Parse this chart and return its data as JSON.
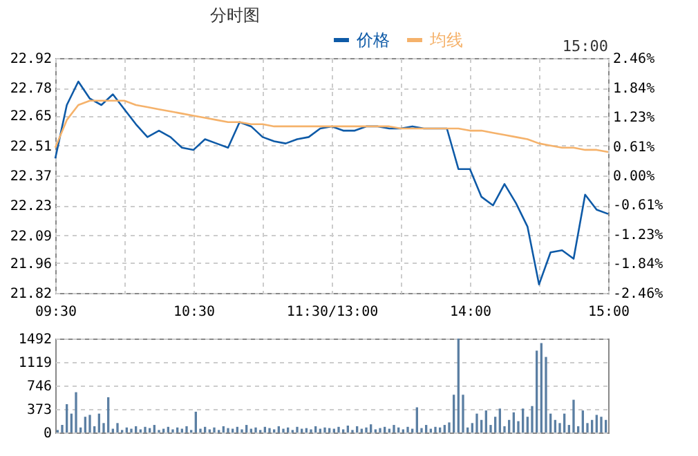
{
  "chart_data": [
    {
      "type": "line",
      "title": "分时图",
      "legend": "top",
      "grid": true,
      "annotations": [
        "15:00"
      ],
      "categories": [
        "09:30",
        null,
        null,
        null,
        null,
        null,
        null,
        null,
        null,
        null,
        null,
        null,
        "10:30",
        null,
        null,
        null,
        null,
        null,
        null,
        null,
        null,
        null,
        null,
        null,
        "11:30/13:00",
        null,
        null,
        null,
        null,
        null,
        null,
        null,
        null,
        null,
        null,
        null,
        "14:00",
        null,
        null,
        null,
        null,
        null,
        null,
        null,
        null,
        null,
        null,
        null,
        "15:00"
      ],
      "ylim": [
        21.82,
        22.92
      ],
      "yticks": [
        21.82,
        21.96,
        22.09,
        22.23,
        22.37,
        22.51,
        22.65,
        22.78,
        22.92
      ],
      "y2lim": [
        -2.46,
        2.46
      ],
      "y2ticks": [
        {
          "value": -2.46,
          "label": "-2.46%"
        },
        {
          "value": -1.84,
          "label": "-1.84%"
        },
        {
          "value": -1.23,
          "label": "-1.23%"
        },
        {
          "value": -0.61,
          "label": "-0.61%"
        },
        {
          "value": 0,
          "label": "0.00%"
        },
        {
          "value": 0.61,
          "label": "0.61%"
        },
        {
          "value": 1.23,
          "label": "1.23%"
        },
        {
          "value": 1.84,
          "label": "1.84%"
        },
        {
          "value": 2.46,
          "label": "2.46%"
        }
      ],
      "series": [
        {
          "name": "价格",
          "color": "#0e5aa7",
          "values": [
            22.45,
            22.7,
            22.81,
            22.73,
            22.7,
            22.75,
            22.68,
            22.61,
            22.55,
            22.58,
            22.55,
            22.5,
            22.49,
            22.54,
            22.52,
            22.5,
            22.62,
            22.6,
            22.55,
            22.53,
            22.52,
            22.54,
            22.55,
            22.59,
            22.6,
            22.58,
            22.58,
            22.6,
            22.6,
            22.59,
            22.59,
            22.6,
            22.59,
            22.59,
            22.59,
            22.4,
            22.4,
            22.27,
            22.23,
            22.33,
            22.24,
            22.13,
            21.86,
            22.01,
            22.02,
            21.98,
            22.28,
            22.21,
            22.19
          ]
        },
        {
          "name": "均线",
          "color": "#f5b26b",
          "values": [
            22.5,
            22.63,
            22.7,
            22.72,
            22.72,
            22.72,
            22.72,
            22.7,
            22.69,
            22.68,
            22.67,
            22.66,
            22.65,
            22.64,
            22.63,
            22.62,
            22.62,
            22.61,
            22.61,
            22.6,
            22.6,
            22.6,
            22.6,
            22.6,
            22.6,
            22.6,
            22.6,
            22.6,
            22.6,
            22.6,
            22.59,
            22.59,
            22.59,
            22.59,
            22.59,
            22.59,
            22.58,
            22.58,
            22.57,
            22.56,
            22.55,
            22.54,
            22.52,
            22.51,
            22.5,
            22.5,
            22.49,
            22.49,
            22.48
          ]
        }
      ]
    },
    {
      "type": "bar",
      "grid": "y",
      "tick_labels": "y",
      "color": "#5b7fa3",
      "categories": [
        null,
        null,
        null,
        null,
        null,
        null,
        null,
        null,
        null,
        null,
        null,
        null,
        null,
        null,
        null,
        null,
        null,
        null,
        null,
        null,
        null,
        null,
        null,
        null,
        null,
        null,
        null,
        null,
        null,
        null,
        null,
        null,
        null,
        null,
        null,
        null,
        null,
        null,
        null,
        null,
        null,
        null,
        null,
        null,
        null,
        null,
        null,
        null,
        null,
        null,
        null,
        null,
        null,
        null,
        null,
        null,
        null,
        null,
        null,
        null,
        null,
        null,
        null,
        null,
        null,
        null,
        null,
        null,
        null,
        null,
        null,
        null,
        null,
        null,
        null,
        null,
        null,
        null,
        null,
        null,
        null,
        null,
        null,
        null,
        null,
        null,
        null,
        null,
        null,
        null,
        null,
        null,
        null,
        null,
        null,
        null,
        null,
        null,
        null,
        null,
        null,
        null,
        null,
        null,
        null,
        null,
        null,
        null,
        null,
        null,
        null,
        null,
        null,
        null,
        null,
        null,
        null,
        null,
        null,
        null
      ],
      "ylim": [
        0,
        1492
      ],
      "yticks": [
        0,
        373,
        746,
        1119,
        1492
      ],
      "values": [
        40,
        120,
        450,
        300,
        640,
        80,
        250,
        280,
        100,
        300,
        150,
        560,
        60,
        150,
        40,
        80,
        60,
        100,
        50,
        90,
        70,
        120,
        40,
        60,
        90,
        50,
        80,
        60,
        100,
        40,
        330,
        60,
        90,
        50,
        80,
        40,
        100,
        70,
        60,
        90,
        50,
        120,
        60,
        80,
        40,
        90,
        70,
        50,
        100,
        60,
        80,
        40,
        90,
        60,
        70,
        50,
        100,
        60,
        80,
        70,
        60,
        90,
        50,
        110,
        40,
        100,
        60,
        80,
        130,
        50,
        70,
        90,
        60,
        120,
        80,
        50,
        90,
        60,
        400,
        70,
        120,
        60,
        90,
        80,
        120,
        160,
        600,
        1492,
        600,
        80,
        150,
        300,
        200,
        350,
        120,
        250,
        380,
        100,
        200,
        320,
        180,
        380,
        250,
        420,
        1300,
        1420,
        1200,
        300,
        200,
        150,
        300,
        120,
        520,
        100,
        350,
        150,
        200,
        280,
        250,
        200
      ]
    }
  ]
}
